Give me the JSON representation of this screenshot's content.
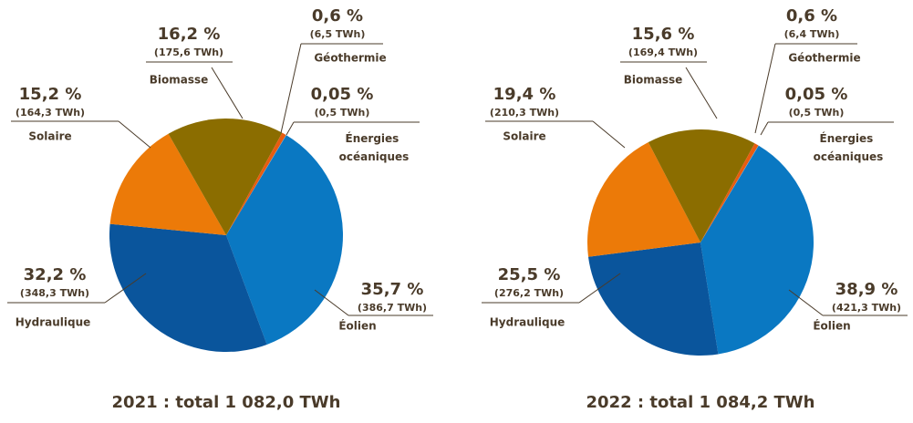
{
  "chart_data": [
    {
      "type": "pie",
      "title": "2021 : total 1 082,0 TWh",
      "categories": [
        "Éolien",
        "Hydraulique",
        "Solaire",
        "Biomasse",
        "Géothermie",
        "Énergies océaniques"
      ],
      "values": [
        35.7,
        32.2,
        15.2,
        16.2,
        0.6,
        0.05
      ],
      "value_labels": [
        "35,7 %",
        "32,2 %",
        "15,2 %",
        "16,2 %",
        "0,6 %",
        "0,05 %"
      ],
      "energy_labels": [
        "(386,7 TWh)",
        "(348,3 TWh)",
        "(164,3 TWh)",
        "(175,6 TWh)",
        "(6,5 TWh)",
        "(0,5 TWh)"
      ],
      "colors": [
        "#0a78c2",
        "#0a559c",
        "#ec7a08",
        "#8b6d00",
        "#e85c10",
        "#5a9ad0"
      ]
    },
    {
      "type": "pie",
      "title": "2022 : total 1 084,2 TWh",
      "categories": [
        "Éolien",
        "Hydraulique",
        "Solaire",
        "Biomasse",
        "Géothermie",
        "Énergies océaniques"
      ],
      "values": [
        38.9,
        25.5,
        19.4,
        15.6,
        0.6,
        0.05
      ],
      "value_labels": [
        "38,9 %",
        "25,5 %",
        "19,4 %",
        "15,6 %",
        "0,6 %",
        "0,05 %"
      ],
      "energy_labels": [
        "(421,3 TWh)",
        "(276,2 TWh)",
        "(210,3 TWh)",
        "(169,4 TWh)",
        "(6,4 TWh)",
        "(0,5 TWh)"
      ],
      "colors": [
        "#0a78c2",
        "#0a559c",
        "#ec7a08",
        "#8b6d00",
        "#e85c10",
        "#5a9ad0"
      ]
    }
  ]
}
